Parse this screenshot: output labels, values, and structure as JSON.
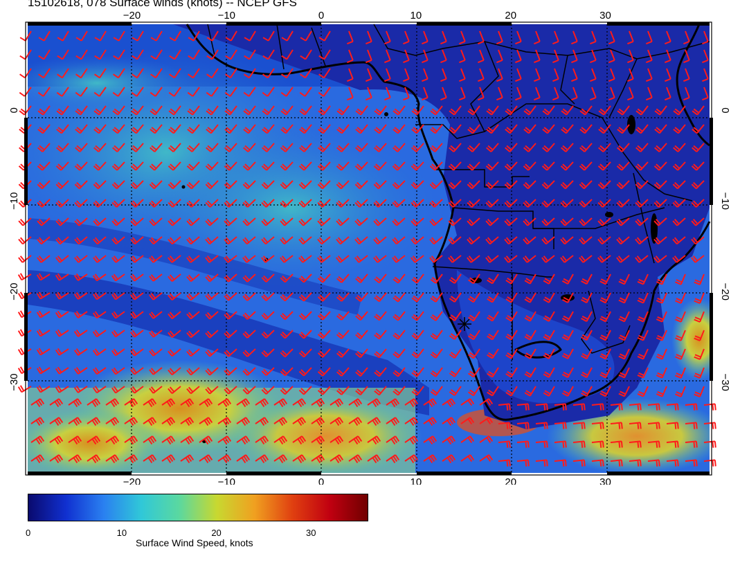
{
  "title": "15102618, 078 Surface winds (knots) -- NCEP GFS",
  "map": {
    "lon_ticks": [
      "−20",
      "−10",
      "0",
      "10",
      "20",
      "30"
    ],
    "lat_ticks": [
      "0",
      "−10",
      "−20",
      "−30"
    ],
    "lon_values": [
      -20,
      -10,
      0,
      10,
      20,
      30
    ],
    "lat_values": [
      0,
      -10,
      -20,
      -30
    ],
    "lon_range": [
      -31,
      41
    ],
    "lat_range": [
      -40,
      9.5
    ],
    "barb_color": "#ff1a1a",
    "graticule": "dotted",
    "projection": "equirectangular"
  },
  "colorbar": {
    "title": "Surface Wind Speed, knots",
    "labels": [
      "0",
      "10",
      "20",
      "30"
    ],
    "range": [
      0,
      36
    ],
    "colors": [
      "#0a0a6e",
      "#1030d0",
      "#2a80f0",
      "#30c8d8",
      "#5ad8a0",
      "#c8d830",
      "#f0a020",
      "#e04010",
      "#c00010",
      "#700000"
    ]
  }
}
